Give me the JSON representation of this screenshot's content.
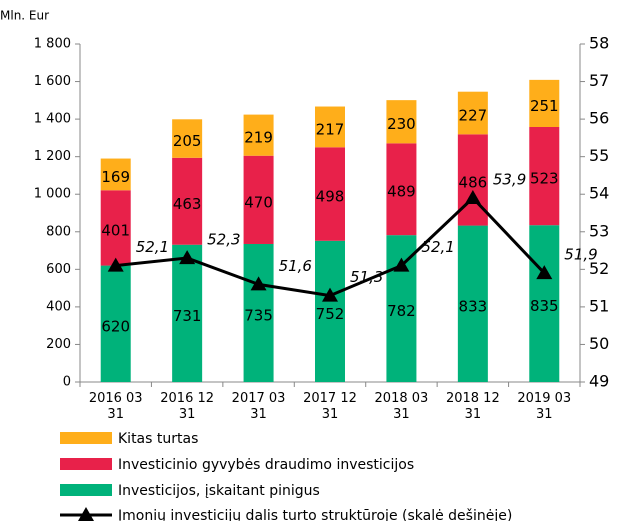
{
  "chart_data": {
    "type": "bar",
    "stacked": true,
    "y_axis_label": "Mln. Eur",
    "categories": [
      "2016 03 31",
      "2016 12 31",
      "2017 03 31",
      "2017 12 31",
      "2018 03 31",
      "2018 12 31",
      "2019 03 31"
    ],
    "series": [
      {
        "name": "Investicijos, įskaitant pinigus",
        "color": "#00b27a",
        "values": [
          620,
          731,
          735,
          752,
          782,
          833,
          835
        ]
      },
      {
        "name": "Investicinio gyvybės draudimo investicijos",
        "color": "#e8214a",
        "values": [
          401,
          463,
          470,
          498,
          489,
          486,
          523
        ]
      },
      {
        "name": "Kitas turtas",
        "color": "#ffae1a",
        "values": [
          169,
          205,
          219,
          217,
          230,
          227,
          251
        ]
      },
      {
        "name": "Įmonių investicijų dalis turto struktūroje (skalė dešinėje)",
        "color": "#000000",
        "axis": "y2",
        "type": "line",
        "values": [
          52.1,
          52.3,
          51.6,
          51.3,
          52.1,
          53.9,
          51.9
        ],
        "value_labels": [
          "52,1",
          "52,3",
          "51,6",
          "51,3",
          "52,1",
          "53,9",
          "51,9"
        ]
      }
    ],
    "ylim": [
      0,
      1800
    ],
    "yticks": [
      0,
      200,
      400,
      600,
      800,
      {
        "value": 1000,
        "label": "1 000"
      },
      {
        "value": 1200,
        "label": "1 200"
      },
      {
        "value": 1400,
        "label": "1 400"
      },
      {
        "value": 1600,
        "label": "1 600"
      },
      {
        "value": 1800,
        "label": "1 800"
      }
    ],
    "y2lim": [
      49,
      58
    ],
    "y2ticks": [
      49,
      50,
      51,
      52,
      53,
      54,
      55,
      56,
      57,
      58
    ],
    "grid": false
  }
}
